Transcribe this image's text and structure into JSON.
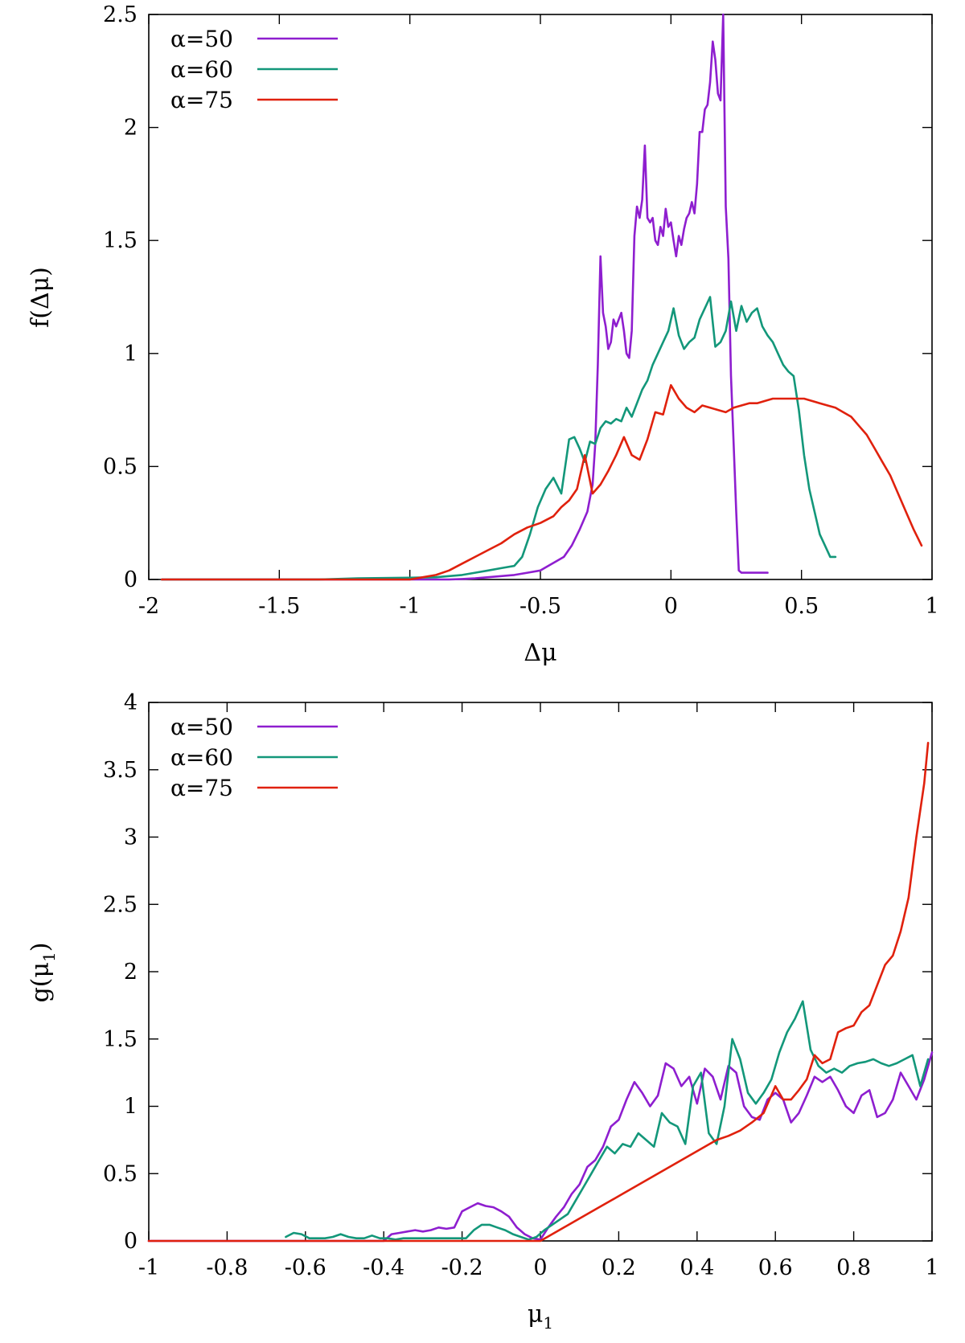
{
  "chart_data": [
    {
      "type": "line",
      "title": "",
      "xlabel": "Δμ",
      "ylabel": "f(Δμ)",
      "xlim": [
        -2,
        1
      ],
      "ylim": [
        0,
        2.5
      ],
      "xticks": [
        -2,
        -1.5,
        -1,
        -0.5,
        0,
        0.5,
        1
      ],
      "xtick_labels": [
        "-2",
        "-1.5",
        "-1",
        "-0.5",
        "0",
        "0.5",
        "1"
      ],
      "yticks": [
        0,
        0.5,
        1,
        1.5,
        2,
        2.5
      ],
      "ytick_labels": [
        "0",
        "0.5",
        "1",
        "1.5",
        "2",
        "2.5"
      ],
      "legend_position": "top-left",
      "grid": false,
      "series": [
        {
          "name": "α=50",
          "color": "#8e1ecf",
          "x": [
            -1.95,
            -1.0,
            -0.85,
            -0.8,
            -0.75,
            -0.7,
            -0.65,
            -0.6,
            -0.55,
            -0.5,
            -0.47,
            -0.44,
            -0.41,
            -0.38,
            -0.35,
            -0.32,
            -0.3,
            -0.29,
            -0.28,
            -0.27,
            -0.26,
            -0.25,
            -0.24,
            -0.23,
            -0.22,
            -0.21,
            -0.2,
            -0.19,
            -0.18,
            -0.17,
            -0.16,
            -0.15,
            -0.14,
            -0.13,
            -0.12,
            -0.11,
            -0.1,
            -0.09,
            -0.08,
            -0.07,
            -0.06,
            -0.05,
            -0.04,
            -0.03,
            -0.02,
            -0.01,
            0.0,
            0.01,
            0.02,
            0.03,
            0.04,
            0.05,
            0.06,
            0.07,
            0.08,
            0.09,
            0.1,
            0.11,
            0.12,
            0.13,
            0.14,
            0.15,
            0.16,
            0.17,
            0.18,
            0.19,
            0.2,
            0.21,
            0.22,
            0.23,
            0.24,
            0.25,
            0.26,
            0.27,
            0.28,
            0.29,
            0.3,
            0.31,
            0.32,
            0.33,
            0.34,
            0.35,
            0.36,
            0.37
          ],
          "y": [
            0.0,
            0.0,
            0.0,
            0.002,
            0.005,
            0.01,
            0.015,
            0.02,
            0.03,
            0.04,
            0.06,
            0.08,
            0.1,
            0.15,
            0.22,
            0.3,
            0.42,
            0.6,
            0.95,
            1.43,
            1.18,
            1.12,
            1.02,
            1.05,
            1.15,
            1.12,
            1.15,
            1.18,
            1.1,
            1.0,
            0.98,
            1.1,
            1.52,
            1.65,
            1.6,
            1.68,
            1.92,
            1.6,
            1.58,
            1.6,
            1.5,
            1.48,
            1.56,
            1.52,
            1.64,
            1.56,
            1.58,
            1.5,
            1.43,
            1.52,
            1.48,
            1.55,
            1.6,
            1.62,
            1.67,
            1.62,
            1.75,
            1.98,
            1.98,
            2.08,
            2.1,
            2.2,
            2.38,
            2.3,
            2.15,
            2.12,
            2.5,
            1.65,
            1.42,
            0.9,
            0.6,
            0.3,
            0.04,
            0.03,
            0.03,
            0.03,
            0.03,
            0.03,
            0.03,
            0.03,
            0.03,
            0.03,
            0.03,
            0.03
          ]
        },
        {
          "name": "α=60",
          "color": "#13977a",
          "x": [
            -1.95,
            -1.35,
            -1.2,
            -1.0,
            -0.9,
            -0.8,
            -0.75,
            -0.7,
            -0.65,
            -0.6,
            -0.57,
            -0.54,
            -0.51,
            -0.48,
            -0.45,
            -0.42,
            -0.39,
            -0.37,
            -0.35,
            -0.33,
            -0.31,
            -0.29,
            -0.27,
            -0.25,
            -0.23,
            -0.21,
            -0.19,
            -0.17,
            -0.15,
            -0.13,
            -0.11,
            -0.09,
            -0.07,
            -0.05,
            -0.03,
            -0.01,
            0.01,
            0.03,
            0.05,
            0.07,
            0.09,
            0.11,
            0.13,
            0.15,
            0.17,
            0.19,
            0.21,
            0.23,
            0.25,
            0.27,
            0.29,
            0.31,
            0.33,
            0.35,
            0.37,
            0.39,
            0.41,
            0.43,
            0.45,
            0.47,
            0.49,
            0.51,
            0.53,
            0.55,
            0.57,
            0.59,
            0.61,
            0.63
          ],
          "y": [
            0.0,
            0.0,
            0.005,
            0.008,
            0.01,
            0.02,
            0.03,
            0.04,
            0.05,
            0.06,
            0.1,
            0.2,
            0.32,
            0.4,
            0.45,
            0.38,
            0.62,
            0.63,
            0.58,
            0.52,
            0.61,
            0.6,
            0.67,
            0.7,
            0.69,
            0.71,
            0.7,
            0.76,
            0.72,
            0.78,
            0.84,
            0.88,
            0.95,
            1.0,
            1.05,
            1.1,
            1.2,
            1.08,
            1.02,
            1.05,
            1.07,
            1.15,
            1.2,
            1.25,
            1.03,
            1.05,
            1.1,
            1.23,
            1.1,
            1.21,
            1.14,
            1.18,
            1.2,
            1.12,
            1.08,
            1.05,
            1.0,
            0.95,
            0.92,
            0.9,
            0.75,
            0.55,
            0.4,
            0.3,
            0.2,
            0.15,
            0.1,
            0.1
          ]
        },
        {
          "name": "α=75",
          "color": "#e0210d",
          "x": [
            -1.95,
            -1.0,
            -0.95,
            -0.9,
            -0.85,
            -0.8,
            -0.75,
            -0.7,
            -0.65,
            -0.6,
            -0.55,
            -0.5,
            -0.45,
            -0.42,
            -0.39,
            -0.36,
            -0.33,
            -0.3,
            -0.27,
            -0.24,
            -0.21,
            -0.18,
            -0.15,
            -0.12,
            -0.09,
            -0.06,
            -0.03,
            0.0,
            0.03,
            0.06,
            0.09,
            0.12,
            0.15,
            0.18,
            0.21,
            0.24,
            0.27,
            0.3,
            0.33,
            0.36,
            0.39,
            0.42,
            0.45,
            0.48,
            0.51,
            0.54,
            0.57,
            0.6,
            0.63,
            0.66,
            0.69,
            0.72,
            0.75,
            0.78,
            0.81,
            0.84,
            0.87,
            0.9,
            0.93,
            0.96
          ],
          "y": [
            0.0,
            0.0,
            0.01,
            0.02,
            0.04,
            0.07,
            0.1,
            0.13,
            0.16,
            0.2,
            0.23,
            0.25,
            0.28,
            0.32,
            0.35,
            0.4,
            0.55,
            0.38,
            0.42,
            0.48,
            0.55,
            0.63,
            0.55,
            0.53,
            0.62,
            0.74,
            0.73,
            0.86,
            0.8,
            0.76,
            0.74,
            0.77,
            0.76,
            0.75,
            0.74,
            0.76,
            0.77,
            0.78,
            0.78,
            0.79,
            0.8,
            0.8,
            0.8,
            0.8,
            0.8,
            0.79,
            0.78,
            0.77,
            0.76,
            0.74,
            0.72,
            0.68,
            0.64,
            0.58,
            0.52,
            0.46,
            0.38,
            0.3,
            0.22,
            0.15
          ]
        }
      ]
    },
    {
      "type": "line",
      "title": "",
      "xlabel": "μ",
      "xlabel_sub": "1",
      "ylabel": "g(μ",
      "ylabel_sub": "1",
      "ylabel_suffix": ")",
      "xlim": [
        -1,
        1
      ],
      "ylim": [
        0,
        4
      ],
      "xticks": [
        -1,
        -0.8,
        -0.6,
        -0.4,
        -0.2,
        0,
        0.2,
        0.4,
        0.6,
        0.8,
        1
      ],
      "xtick_labels": [
        "-1",
        "-0.8",
        "-0.6",
        "-0.4",
        "-0.2",
        "0",
        "0.2",
        "0.4",
        "0.6",
        "0.8",
        "1"
      ],
      "yticks": [
        0,
        0.5,
        1,
        1.5,
        2,
        2.5,
        3,
        3.5,
        4
      ],
      "ytick_labels": [
        "0",
        "0.5",
        "1",
        "1.5",
        "2",
        "2.5",
        "3",
        "3.5",
        "4"
      ],
      "legend_position": "top-left",
      "grid": false,
      "series": [
        {
          "name": "α=50",
          "color": "#8e1ecf",
          "x": [
            -1.0,
            -0.4,
            -0.38,
            -0.36,
            -0.34,
            -0.32,
            -0.3,
            -0.28,
            -0.26,
            -0.24,
            -0.22,
            -0.2,
            -0.18,
            -0.16,
            -0.14,
            -0.12,
            -0.1,
            -0.08,
            -0.06,
            -0.04,
            -0.02,
            0.0,
            0.02,
            0.04,
            0.06,
            0.08,
            0.1,
            0.12,
            0.14,
            0.16,
            0.18,
            0.2,
            0.22,
            0.24,
            0.26,
            0.28,
            0.3,
            0.32,
            0.34,
            0.36,
            0.38,
            0.4,
            0.42,
            0.44,
            0.46,
            0.48,
            0.5,
            0.52,
            0.54,
            0.56,
            0.58,
            0.6,
            0.62,
            0.64,
            0.66,
            0.68,
            0.7,
            0.72,
            0.74,
            0.76,
            0.78,
            0.8,
            0.82,
            0.84,
            0.86,
            0.88,
            0.9,
            0.92,
            0.94,
            0.96,
            0.98,
            1.0
          ],
          "y": [
            0.0,
            0.0,
            0.05,
            0.06,
            0.07,
            0.08,
            0.07,
            0.08,
            0.1,
            0.09,
            0.1,
            0.22,
            0.25,
            0.28,
            0.26,
            0.25,
            0.22,
            0.18,
            0.1,
            0.05,
            0.02,
            0.01,
            0.1,
            0.18,
            0.25,
            0.35,
            0.42,
            0.55,
            0.6,
            0.7,
            0.85,
            0.9,
            1.05,
            1.18,
            1.1,
            1.0,
            1.08,
            1.32,
            1.28,
            1.15,
            1.22,
            1.02,
            1.28,
            1.22,
            1.05,
            1.3,
            1.25,
            1.0,
            0.92,
            0.9,
            1.05,
            1.1,
            1.05,
            0.88,
            0.95,
            1.08,
            1.22,
            1.18,
            1.22,
            1.12,
            1.0,
            0.95,
            1.08,
            1.12,
            0.92,
            0.95,
            1.05,
            1.25,
            1.15,
            1.05,
            1.2,
            1.4
          ]
        },
        {
          "name": "α=60",
          "color": "#13977a",
          "x": [
            -0.65,
            -0.63,
            -0.61,
            -0.59,
            -0.57,
            -0.55,
            -0.53,
            -0.51,
            -0.49,
            -0.47,
            -0.45,
            -0.43,
            -0.41,
            -0.39,
            -0.37,
            -0.35,
            -0.33,
            -0.31,
            -0.29,
            -0.27,
            -0.25,
            -0.23,
            -0.21,
            -0.19,
            -0.17,
            -0.15,
            -0.13,
            -0.11,
            -0.09,
            -0.07,
            -0.05,
            -0.03,
            -0.01,
            0.01,
            0.03,
            0.05,
            0.07,
            0.09,
            0.11,
            0.13,
            0.15,
            0.17,
            0.19,
            0.21,
            0.23,
            0.25,
            0.27,
            0.29,
            0.31,
            0.33,
            0.35,
            0.37,
            0.39,
            0.41,
            0.43,
            0.45,
            0.47,
            0.49,
            0.51,
            0.53,
            0.55,
            0.57,
            0.59,
            0.61,
            0.63,
            0.65,
            0.67,
            0.69,
            0.71,
            0.73,
            0.75,
            0.77,
            0.79,
            0.81,
            0.83,
            0.85,
            0.87,
            0.89,
            0.91,
            0.93,
            0.95,
            0.97,
            0.99
          ],
          "y": [
            0.03,
            0.06,
            0.05,
            0.02,
            0.02,
            0.02,
            0.03,
            0.05,
            0.03,
            0.02,
            0.02,
            0.04,
            0.02,
            0.02,
            0.01,
            0.02,
            0.02,
            0.02,
            0.02,
            0.02,
            0.02,
            0.02,
            0.02,
            0.02,
            0.08,
            0.12,
            0.12,
            0.1,
            0.08,
            0.05,
            0.03,
            0.01,
            0.03,
            0.08,
            0.12,
            0.16,
            0.2,
            0.3,
            0.4,
            0.5,
            0.6,
            0.7,
            0.65,
            0.72,
            0.7,
            0.8,
            0.75,
            0.7,
            0.95,
            0.88,
            0.85,
            0.72,
            1.15,
            1.25,
            0.8,
            0.72,
            1.0,
            1.5,
            1.35,
            1.1,
            1.02,
            1.1,
            1.2,
            1.4,
            1.55,
            1.65,
            1.78,
            1.42,
            1.3,
            1.25,
            1.28,
            1.25,
            1.3,
            1.32,
            1.33,
            1.35,
            1.32,
            1.3,
            1.32,
            1.35,
            1.38,
            1.15,
            1.35
          ]
        },
        {
          "name": "α=75",
          "color": "#e0210d",
          "x": [
            -1.0,
            -0.02,
            0.0,
            0.03,
            0.06,
            0.09,
            0.12,
            0.15,
            0.18,
            0.21,
            0.24,
            0.27,
            0.3,
            0.33,
            0.36,
            0.39,
            0.42,
            0.45,
            0.48,
            0.51,
            0.54,
            0.57,
            0.6,
            0.62,
            0.64,
            0.66,
            0.68,
            0.7,
            0.72,
            0.74,
            0.76,
            0.78,
            0.8,
            0.82,
            0.84,
            0.86,
            0.88,
            0.9,
            0.92,
            0.94,
            0.96,
            0.98,
            0.99
          ],
          "y": [
            0.0,
            0.0,
            0.0,
            0.05,
            0.1,
            0.15,
            0.2,
            0.25,
            0.3,
            0.35,
            0.4,
            0.45,
            0.5,
            0.55,
            0.6,
            0.65,
            0.7,
            0.75,
            0.78,
            0.82,
            0.88,
            0.95,
            1.15,
            1.05,
            1.05,
            1.12,
            1.2,
            1.38,
            1.32,
            1.35,
            1.55,
            1.58,
            1.6,
            1.7,
            1.75,
            1.9,
            2.05,
            2.12,
            2.3,
            2.55,
            3.0,
            3.4,
            3.7
          ]
        }
      ]
    }
  ]
}
